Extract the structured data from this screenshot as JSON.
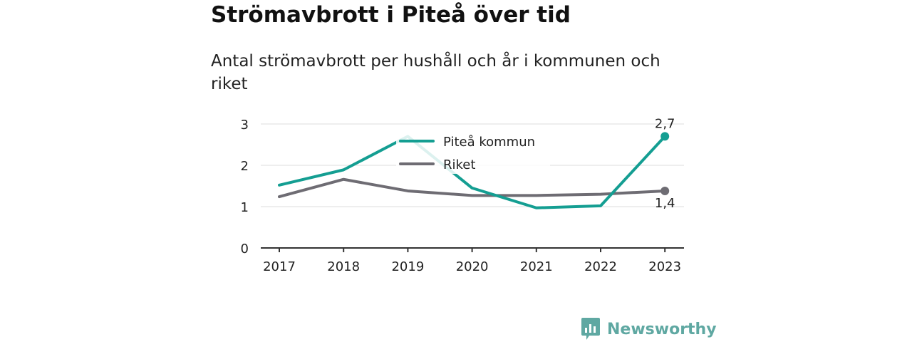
{
  "chart_data": {
    "type": "line",
    "title": "Strömavbrott i Piteå över tid",
    "subtitle": "Antal strömavbrott per hushåll och år i kommunen och riket",
    "xlabel": "",
    "ylabel": "",
    "x": [
      "2017",
      "2018",
      "2019",
      "2020",
      "2021",
      "2022",
      "2023"
    ],
    "ylim": [
      0,
      3
    ],
    "yticks": [
      0,
      1,
      2,
      3
    ],
    "grid": true,
    "legend_position": "top-center",
    "series": [
      {
        "name": "Piteå kommun",
        "color": "#149e92",
        "values": [
          1.52,
          1.89,
          2.7,
          1.45,
          0.97,
          1.02,
          2.7
        ],
        "end_label": "2,7"
      },
      {
        "name": "Riket",
        "color": "#6e6c73",
        "values": [
          1.24,
          1.66,
          1.38,
          1.27,
          1.27,
          1.3,
          1.38
        ],
        "end_label": "1,4"
      }
    ]
  },
  "branding": {
    "name": "Newsworthy",
    "icon": "newsworthy-logo-icon",
    "color": "#5fa8a2"
  }
}
